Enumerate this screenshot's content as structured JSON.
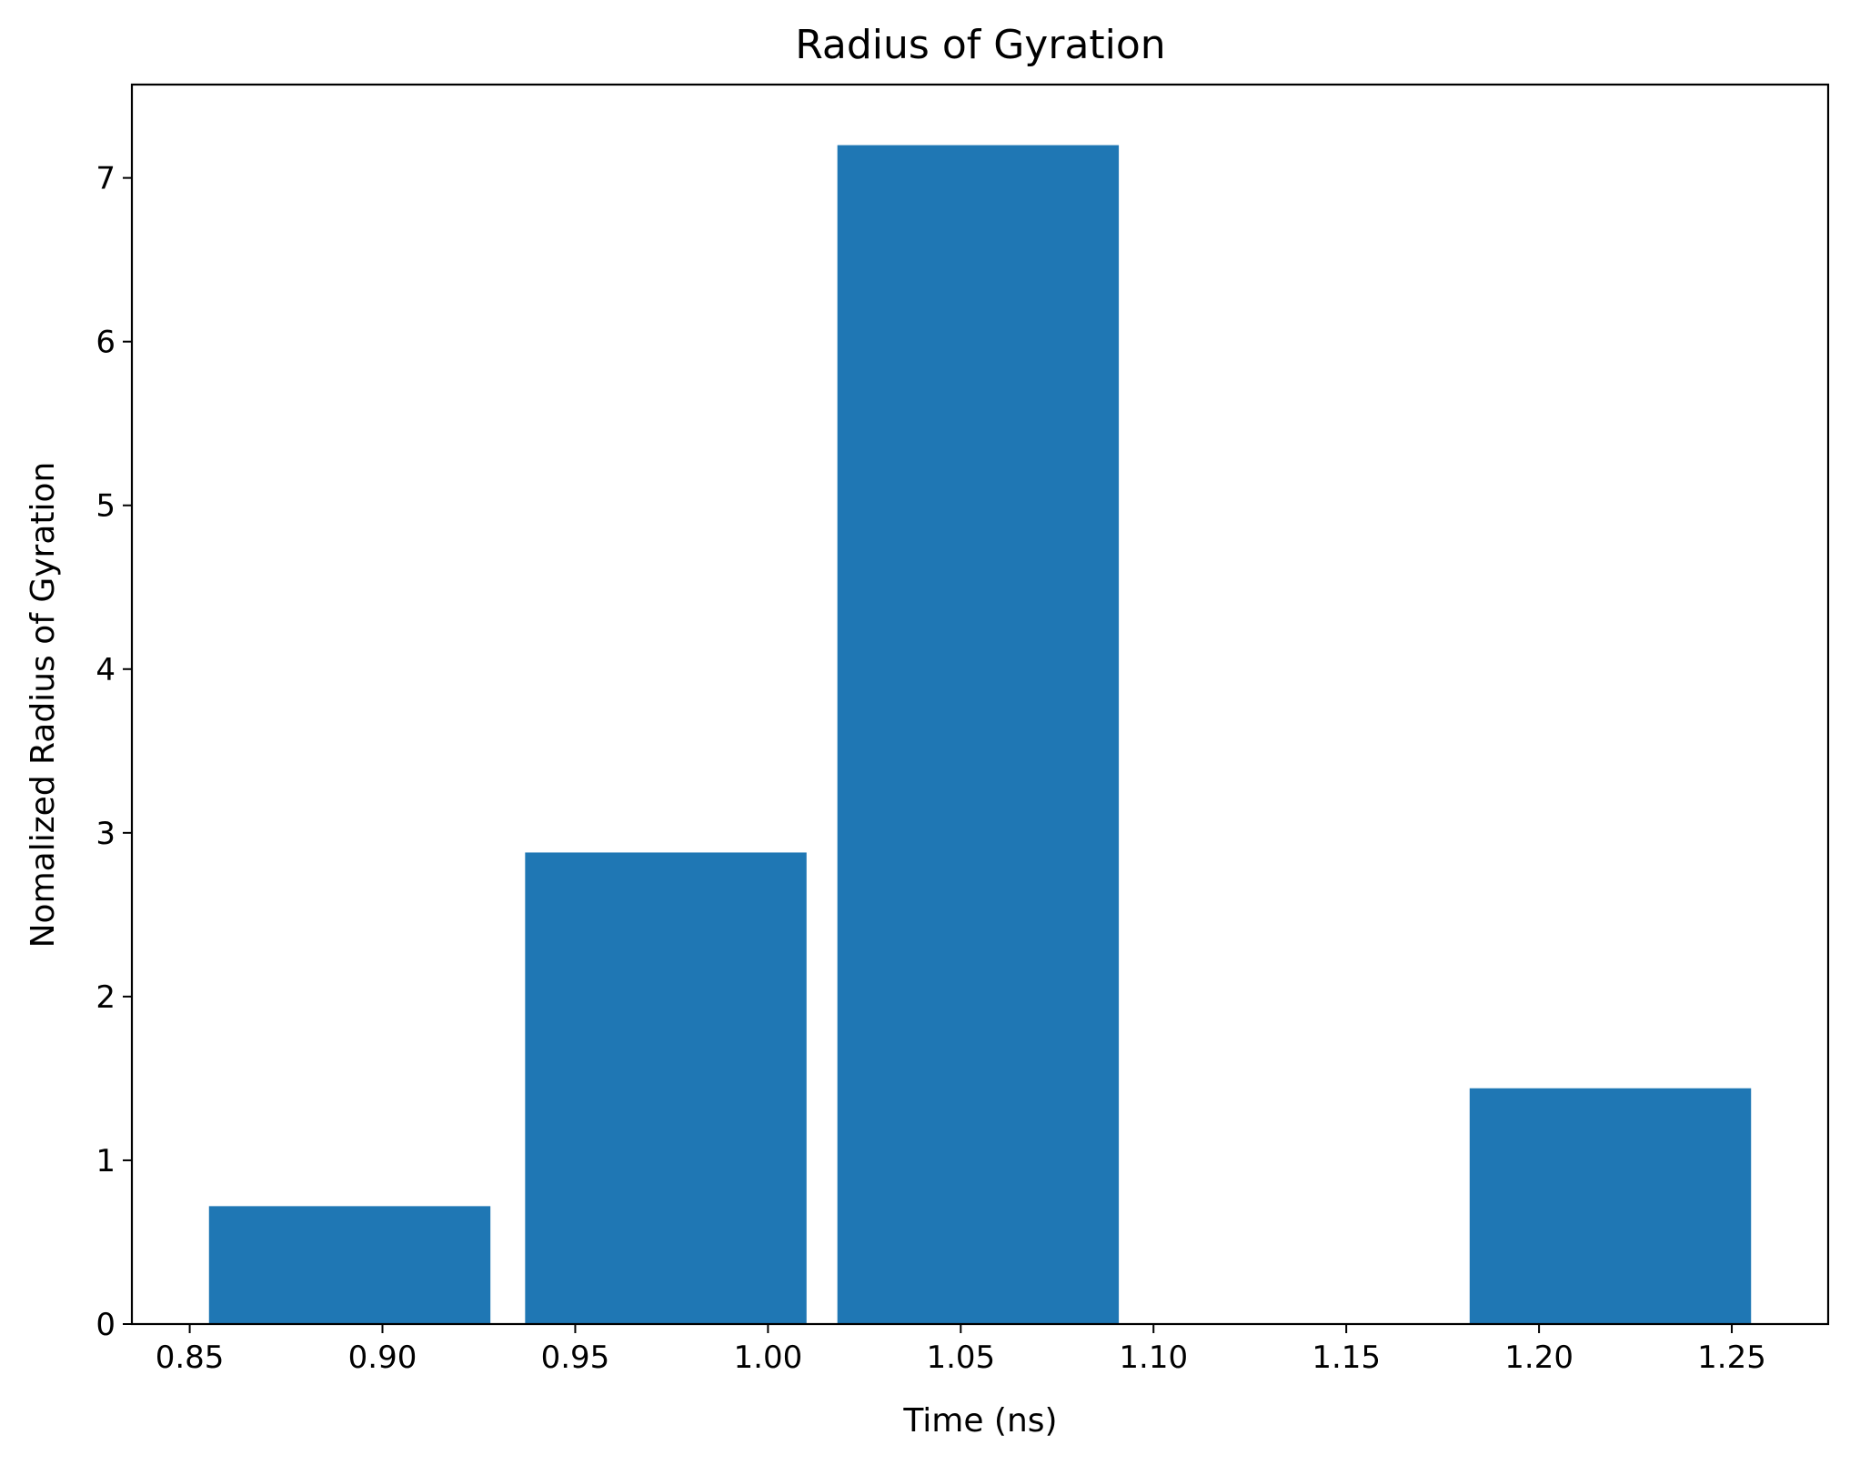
{
  "chart_data": {
    "type": "bar",
    "title": "Radius of Gyration",
    "xlabel": "Time (ns)",
    "ylabel": "Nomalized Radius of Gyration",
    "xlim": [
      0.835,
      1.275
    ],
    "ylim": [
      0,
      7.57
    ],
    "xticks": [
      "0.85",
      "0.90",
      "0.95",
      "1.00",
      "1.05",
      "1.10",
      "1.15",
      "1.20",
      "1.25"
    ],
    "yticks": [
      "0",
      "1",
      "2",
      "3",
      "4",
      "5",
      "6",
      "7"
    ],
    "grid": false,
    "legend": "none",
    "color": "#1f77b4",
    "bars": [
      {
        "x0": 0.855,
        "x1": 0.928,
        "value": 0.72
      },
      {
        "x0": 0.937,
        "x1": 1.01,
        "value": 2.88
      },
      {
        "x0": 1.018,
        "x1": 1.091,
        "value": 7.2
      },
      {
        "x0": 1.1,
        "x1": 1.173,
        "value": 0
      },
      {
        "x0": 1.182,
        "x1": 1.255,
        "value": 1.44
      }
    ]
  }
}
